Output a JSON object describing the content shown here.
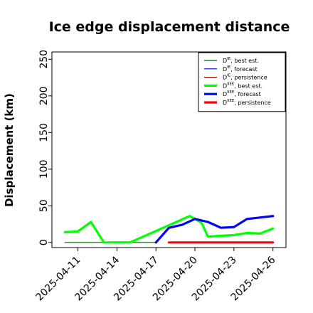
{
  "chart_data": {
    "type": "line",
    "title": "Ice edge displacement distance",
    "ylabel": "Displacement (km)",
    "xlabel": "",
    "ylim": [
      -7,
      260
    ],
    "xlim": [
      "2025-04-09",
      "2025-04-27"
    ],
    "grid": false,
    "legend_placement": "top-right",
    "y_ticks": [
      0,
      50,
      100,
      150,
      200,
      250
    ],
    "x_ticks": [
      {
        "label": "2025-04-11",
        "date": "2025-04-11",
        "color": "#000000"
      },
      {
        "label": "2025-04-14",
        "date": "2025-04-14",
        "color": "#000000"
      },
      {
        "label": "2025-04-17",
        "date": "2025-04-17",
        "color": "#228B22"
      },
      {
        "label": "2025-04-20",
        "date": "2025-04-20",
        "color": "#000000"
      },
      {
        "label": "2025-04-23",
        "date": "2025-04-23",
        "color": "#000000"
      },
      {
        "label": "2025-04-26",
        "date": "2025-04-26",
        "color": "#000000"
      }
    ],
    "series": [
      {
        "name": "D^IE, best est.",
        "name_main": "D",
        "name_sup": "IE",
        "name_rest": ", best est.",
        "color": "#006400",
        "width": 1.2,
        "x": [
          "2025-04-10",
          "2025-04-11",
          "2025-04-12",
          "2025-04-13",
          "2025-04-14",
          "2025-04-15",
          "2025-04-16",
          "2025-04-17"
        ],
        "y": [
          0,
          0,
          0,
          0,
          0,
          0,
          0,
          0
        ]
      },
      {
        "name": "D^IE, forecast",
        "name_main": "D",
        "name_sup": "IE",
        "name_rest": ", forecast",
        "color": "#0000cd",
        "width": 1.2,
        "x": [],
        "y": []
      },
      {
        "name": "D^IE, persistence",
        "name_main": "D",
        "name_sup": "IE",
        "name_rest": ", persistence",
        "color": "#8b0000",
        "width": 1.2,
        "x": [],
        "y": []
      },
      {
        "name": "D^IIEE, best est.",
        "name_main": "D",
        "name_sup": "IIEE",
        "name_rest": ", best est.",
        "color": "#00ff00",
        "width": 3.2,
        "x": [
          "2025-04-10",
          "2025-04-11",
          "2025-04-12",
          "2025-04-13",
          "2025-04-14",
          "2025-04-15",
          "2025-04-19.6",
          "2025-04-20.5",
          "2025-04-21",
          "2025-04-22",
          "2025-04-23",
          "2025-04-24",
          "2025-04-25",
          "2025-04-26"
        ],
        "y": [
          14,
          15,
          28,
          0,
          0,
          0,
          36,
          27,
          8,
          9,
          10,
          13,
          12,
          19
        ]
      },
      {
        "name": "D^IIEE, forecast",
        "name_main": "D",
        "name_sup": "IIEE",
        "name_rest": ", forecast",
        "color": "#0000ff",
        "width": 3.2,
        "x": [
          "2025-04-17",
          "2025-04-18",
          "2025-04-19",
          "2025-04-20",
          "2025-04-21",
          "2025-04-22",
          "2025-04-23",
          "2025-04-24",
          "2025-04-25",
          "2025-04-26"
        ],
        "y": [
          0,
          20,
          24,
          32,
          28,
          20,
          21,
          32,
          34,
          36
        ]
      },
      {
        "name": "D^IIEE, persistence",
        "name_main": "D",
        "name_sup": "IIEE",
        "name_rest": ", persistence",
        "color": "#ff0000",
        "width": 3.2,
        "x": [
          "2025-04-18",
          "2025-04-19",
          "2025-04-20",
          "2025-04-21",
          "2025-04-22",
          "2025-04-23",
          "2025-04-24",
          "2025-04-25",
          "2025-04-26"
        ],
        "y": [
          0,
          0,
          0,
          0,
          0,
          0,
          0,
          0,
          0
        ]
      }
    ],
    "connector": {
      "color": "#00ff00",
      "x": [
        "2025-04-15",
        "2025-04-19.6"
      ],
      "y": [
        0,
        36
      ]
    }
  }
}
